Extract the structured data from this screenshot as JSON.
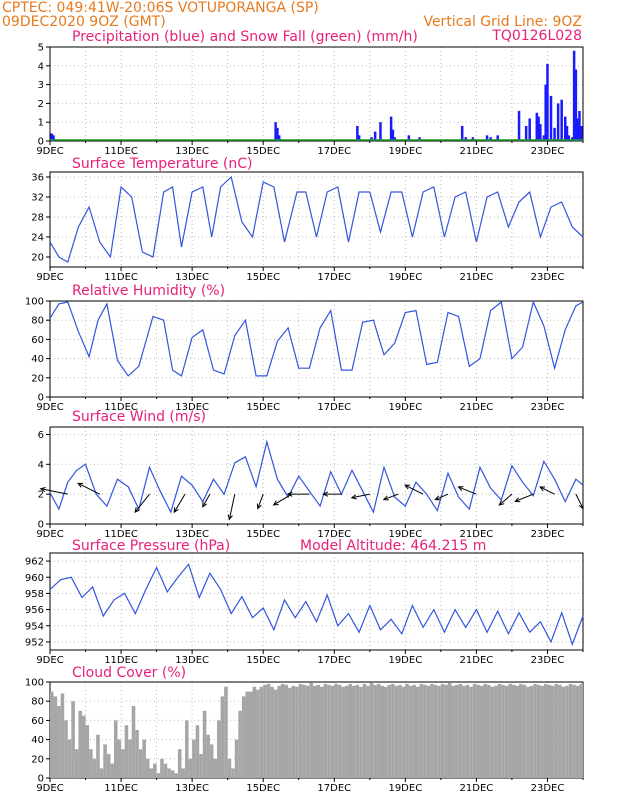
{
  "header": {
    "station": "CPTEC:   049:41W-20:06S   VOTUPORANGA (SP)",
    "run": "09DEC2020 9OZ (GMT)",
    "gridline": "Vertical Grid Line: 9OZ",
    "code": "TQ0126L028"
  },
  "chart_data": [
    {
      "type": "bar",
      "title": "Precipitation (blue) and Snow Fall (green) (mm/h)",
      "ylim": [
        0,
        5
      ],
      "yticks": [
        "0",
        "1",
        "2",
        "3",
        "4",
        "5"
      ],
      "xticks": [
        "9DEC",
        "11DEC",
        "13DEC",
        "15DEC",
        "17DEC",
        "19DEC",
        "21DEC",
        "23DEC"
      ],
      "series": [
        {
          "name": "Precipitation",
          "color": "#1a1aff",
          "x": [
            0.05,
            0.1,
            6.35,
            6.4,
            6.45,
            6.5,
            8.65,
            8.7,
            9.05,
            9.15,
            9.3,
            9.6,
            9.65,
            9.7,
            10.1,
            10.4,
            11.6,
            11.7,
            11.9,
            12.3,
            12.4,
            12.6,
            13.2,
            13.4,
            13.5,
            13.7,
            13.75,
            13.8,
            13.9,
            13.95,
            14.0,
            14.1,
            14.2,
            14.3,
            14.4,
            14.5,
            14.55,
            14.6,
            14.7,
            14.75,
            14.8,
            14.85,
            14.9,
            14.95
          ],
          "values": [
            0.4,
            0.3,
            1.0,
            0.7,
            0.3,
            0.1,
            0.8,
            0.3,
            0.2,
            0.5,
            1.0,
            1.3,
            0.6,
            0.2,
            0.3,
            0.2,
            0.8,
            0.2,
            0.2,
            0.3,
            0.2,
            0.3,
            1.6,
            0.8,
            1.2,
            1.5,
            1.3,
            0.9,
            0.3,
            3.0,
            4.1,
            2.4,
            0.7,
            2.0,
            2.2,
            1.3,
            0.8,
            0.3,
            0.2,
            4.8,
            3.8,
            1.2,
            1.6,
            0.8
          ]
        },
        {
          "name": "Snow Fall",
          "color": "#1f9e1f",
          "x": [],
          "values": []
        }
      ]
    },
    {
      "type": "line",
      "title": "Surface Temperature (nC)",
      "ylim": [
        18,
        37
      ],
      "yticks": [
        "20",
        "24",
        "28",
        "32",
        "36"
      ],
      "xticks": [
        "9DEC",
        "11DEC",
        "13DEC",
        "15DEC",
        "17DEC",
        "19DEC",
        "21DEC",
        "23DEC"
      ],
      "x": [
        0,
        0.25,
        0.5,
        0.8,
        1.1,
        1.4,
        1.7,
        2.0,
        2.3,
        2.6,
        2.9,
        3.2,
        3.45,
        3.7,
        4.0,
        4.3,
        4.55,
        4.8,
        5.1,
        5.4,
        5.7,
        6.0,
        6.3,
        6.6,
        6.95,
        7.2,
        7.5,
        7.8,
        8.1,
        8.4,
        8.7,
        9.0,
        9.3,
        9.6,
        9.9,
        10.2,
        10.5,
        10.8,
        11.1,
        11.4,
        11.7,
        12.0,
        12.3,
        12.6,
        12.9,
        13.2,
        13.5,
        13.8,
        14.1,
        14.4,
        14.7,
        15.0
      ],
      "values": [
        23,
        20,
        19,
        26,
        30,
        23,
        20,
        34,
        32,
        21,
        20,
        33,
        34,
        22,
        33,
        34,
        24,
        34,
        36,
        27,
        24,
        35,
        34,
        23,
        33,
        33,
        24,
        33,
        34,
        23,
        33,
        33,
        25,
        33,
        33,
        24,
        33,
        34,
        24,
        32,
        33,
        23,
        32,
        33,
        26,
        31,
        33,
        24,
        30,
        31,
        26,
        24
      ],
      "color": "#3355dd"
    },
    {
      "type": "line",
      "title": "Relative Humidity (%)",
      "ylim": [
        0,
        100
      ],
      "yticks": [
        "0",
        "20",
        "40",
        "60",
        "80",
        "100"
      ],
      "xticks": [
        "9DEC",
        "11DEC",
        "13DEC",
        "15DEC",
        "17DEC",
        "19DEC",
        "21DEC",
        "23DEC"
      ],
      "x": [
        0,
        0.25,
        0.5,
        0.8,
        1.1,
        1.35,
        1.6,
        1.9,
        2.2,
        2.5,
        2.9,
        3.2,
        3.45,
        3.7,
        4.0,
        4.3,
        4.6,
        4.9,
        5.2,
        5.5,
        5.8,
        6.1,
        6.4,
        6.7,
        7.0,
        7.3,
        7.6,
        7.9,
        8.2,
        8.5,
        8.8,
        9.1,
        9.4,
        9.7,
        10.0,
        10.3,
        10.6,
        10.9,
        11.2,
        11.5,
        11.8,
        12.1,
        12.4,
        12.7,
        13.0,
        13.3,
        13.6,
        13.9,
        14.2,
        14.5,
        14.8,
        15.0
      ],
      "values": [
        82,
        97,
        99,
        68,
        42,
        80,
        97,
        38,
        22,
        32,
        84,
        80,
        28,
        22,
        62,
        70,
        28,
        24,
        64,
        80,
        22,
        22,
        58,
        72,
        30,
        30,
        72,
        90,
        28,
        28,
        78,
        80,
        44,
        56,
        88,
        90,
        34,
        36,
        88,
        84,
        32,
        40,
        90,
        99,
        40,
        52,
        99,
        74,
        30,
        70,
        95,
        99
      ],
      "color": "#3355dd"
    },
    {
      "type": "line",
      "title": "Surface Wind (m/s)",
      "ylim": [
        0,
        6.5
      ],
      "yticks": [
        "0",
        "2",
        "4",
        "6"
      ],
      "xticks": [
        "9DEC",
        "11DEC",
        "13DEC",
        "15DEC",
        "17DEC",
        "19DEC",
        "21DEC",
        "23DEC"
      ],
      "x": [
        0,
        0.25,
        0.5,
        0.75,
        1.0,
        1.3,
        1.6,
        1.9,
        2.2,
        2.5,
        2.8,
        3.1,
        3.4,
        3.7,
        4.0,
        4.3,
        4.6,
        4.9,
        5.2,
        5.5,
        5.8,
        6.1,
        6.4,
        6.7,
        7.0,
        7.3,
        7.6,
        7.9,
        8.2,
        8.5,
        8.8,
        9.1,
        9.4,
        9.7,
        10.0,
        10.3,
        10.6,
        10.9,
        11.2,
        11.5,
        11.8,
        12.1,
        12.4,
        12.7,
        13.0,
        13.3,
        13.6,
        13.9,
        14.2,
        14.5,
        14.8,
        15.0
      ],
      "values": [
        2.1,
        1.0,
        2.8,
        3.6,
        4.0,
        2.0,
        1.2,
        3.0,
        2.5,
        1.0,
        3.8,
        2.2,
        0.8,
        3.2,
        2.6,
        1.5,
        3.0,
        2.0,
        4.1,
        4.5,
        2.5,
        5.5,
        3.0,
        1.8,
        3.2,
        2.2,
        1.2,
        3.5,
        2.0,
        3.6,
        2.2,
        0.8,
        3.8,
        1.8,
        1.2,
        2.8,
        2.0,
        0.9,
        3.4,
        1.8,
        1.0,
        3.8,
        2.4,
        1.6,
        3.9,
        2.8,
        1.9,
        4.2,
        3.0,
        1.5,
        3.0,
        2.6
      ],
      "color": "#3355dd",
      "vectors": {
        "x": [
          0.5,
          1.4,
          2.8,
          3.8,
          4.5,
          5.2,
          6.0,
          6.8,
          7.3,
          8.2,
          9.0,
          9.8,
          10.5,
          11.2,
          12.0,
          13.0,
          13.6,
          14.2,
          14.8
        ],
        "y": [
          2.0,
          2.0,
          2.0,
          2.0,
          2.0,
          2.0,
          2.0,
          2.0,
          2.0,
          2.0,
          2.0,
          2.0,
          2.0,
          2.0,
          2.0,
          2.0,
          2.0,
          2.0,
          2.0
        ],
        "u": [
          -1.5,
          -1.2,
          -0.8,
          -0.6,
          -0.4,
          -0.3,
          -0.3,
          -1.0,
          -1.2,
          -1.0,
          -1.0,
          -0.8,
          -1.0,
          -0.7,
          -1.0,
          -0.7,
          -1.0,
          -0.8,
          0.4
        ],
        "v": [
          0.3,
          0.6,
          -1.0,
          -1.0,
          -0.7,
          -1.4,
          -0.8,
          -0.6,
          0.0,
          0.0,
          -0.2,
          -0.3,
          0.5,
          -0.3,
          0.4,
          -0.6,
          -0.4,
          0.4,
          -0.8
        ]
      }
    },
    {
      "type": "line",
      "title": "Surface Pressure (hPa)",
      "annotation": "Model Altitude: 464.215  m",
      "ylim": [
        951,
        963
      ],
      "yticks": [
        "952",
        "954",
        "956",
        "958",
        "960",
        "962"
      ],
      "xticks": [
        "9DEC",
        "11DEC",
        "13DEC",
        "15DEC",
        "17DEC",
        "19DEC",
        "21DEC",
        "23DEC"
      ],
      "x": [
        0,
        0.3,
        0.6,
        0.9,
        1.2,
        1.5,
        1.8,
        2.1,
        2.4,
        2.7,
        3.0,
        3.3,
        3.6,
        3.9,
        4.2,
        4.5,
        4.8,
        5.1,
        5.4,
        5.7,
        6.0,
        6.3,
        6.6,
        6.9,
        7.2,
        7.5,
        7.8,
        8.1,
        8.4,
        8.7,
        9.0,
        9.3,
        9.6,
        9.9,
        10.2,
        10.5,
        10.8,
        11.1,
        11.4,
        11.7,
        12.0,
        12.3,
        12.6,
        12.9,
        13.2,
        13.5,
        13.8,
        14.1,
        14.4,
        14.7,
        15.0
      ],
      "values": [
        958.5,
        959.7,
        960.0,
        957.5,
        958.8,
        955.2,
        957.2,
        958.0,
        955.5,
        958.5,
        961.2,
        958.2,
        960.0,
        961.6,
        957.5,
        960.5,
        958.5,
        955.5,
        957.6,
        955.0,
        956.2,
        953.5,
        957.2,
        955.0,
        957.0,
        954.5,
        957.8,
        954.0,
        955.5,
        953.2,
        956.5,
        953.5,
        954.8,
        953.0,
        956.5,
        953.8,
        956.0,
        953.2,
        956.0,
        953.8,
        956.0,
        953.2,
        955.8,
        953.0,
        955.6,
        953.2,
        954.5,
        952.0,
        955.6,
        951.7,
        955.2
      ],
      "color": "#3355dd"
    },
    {
      "type": "bar",
      "title": "Cloud Cover (%)",
      "ylim": [
        0,
        100
      ],
      "yticks": [
        "0",
        "20",
        "40",
        "60",
        "80",
        "100"
      ],
      "xticks": [
        "9DEC",
        "11DEC",
        "13DEC",
        "15DEC",
        "17DEC",
        "19DEC",
        "21DEC",
        "23DEC"
      ],
      "color": "#a6a6a6",
      "x": [
        0.05,
        0.15,
        0.25,
        0.35,
        0.45,
        0.55,
        0.65,
        0.75,
        0.85,
        0.95,
        1.05,
        1.15,
        1.25,
        1.35,
        1.45,
        1.55,
        1.65,
        1.75,
        1.85,
        1.95,
        2.05,
        2.15,
        2.25,
        2.35,
        2.45,
        2.55,
        2.65,
        2.75,
        2.85,
        2.95,
        3.05,
        3.15,
        3.25,
        3.35,
        3.45,
        3.55,
        3.65,
        3.75,
        3.85,
        3.95,
        4.05,
        4.15,
        4.25,
        4.35,
        4.45,
        4.55,
        4.65,
        4.75,
        4.85,
        4.95,
        5.05,
        5.15,
        5.25,
        5.35,
        5.45,
        5.55,
        5.65,
        5.75,
        5.85,
        5.95,
        6.05,
        6.15,
        6.25,
        6.35,
        6.45,
        6.55,
        6.65,
        6.75,
        6.85,
        6.95,
        7.05,
        7.15,
        7.25,
        7.35,
        7.45,
        7.55,
        7.65,
        7.75,
        7.85,
        7.95,
        8.05,
        8.15,
        8.25,
        8.35,
        8.45,
        8.55,
        8.65,
        8.75,
        8.85,
        8.95,
        9.05,
        9.15,
        9.25,
        9.35,
        9.45,
        9.55,
        9.65,
        9.75,
        9.85,
        9.95,
        10.05,
        10.15,
        10.25,
        10.35,
        10.45,
        10.55,
        10.65,
        10.75,
        10.85,
        10.95,
        11.05,
        11.15,
        11.25,
        11.35,
        11.45,
        11.55,
        11.65,
        11.75,
        11.85,
        11.95,
        12.05,
        12.15,
        12.25,
        12.35,
        12.45,
        12.55,
        12.65,
        12.75,
        12.85,
        12.95,
        13.05,
        13.15,
        13.25,
        13.35,
        13.45,
        13.55,
        13.65,
        13.75,
        13.85,
        13.95,
        14.05,
        14.15,
        14.25,
        14.35,
        14.45,
        14.55,
        14.65,
        14.75,
        14.85,
        14.95
      ],
      "values": [
        90,
        85,
        75,
        88,
        60,
        40,
        80,
        30,
        70,
        65,
        55,
        30,
        20,
        45,
        10,
        35,
        25,
        15,
        60,
        40,
        30,
        55,
        40,
        75,
        50,
        30,
        40,
        20,
        10,
        15,
        5,
        20,
        15,
        10,
        8,
        5,
        30,
        10,
        60,
        20,
        40,
        55,
        25,
        70,
        45,
        35,
        20,
        60,
        85,
        95,
        20,
        10,
        40,
        70,
        85,
        90,
        90,
        95,
        92,
        95,
        97,
        98,
        95,
        92,
        96,
        98,
        97,
        94,
        96,
        95,
        98,
        97,
        96,
        99,
        96,
        97,
        95,
        98,
        97,
        96,
        98,
        97,
        95,
        96,
        98,
        96,
        97,
        95,
        98,
        96,
        99,
        97,
        98,
        96,
        95,
        97,
        98,
        96,
        97,
        95,
        98,
        96,
        97,
        95,
        98,
        97,
        96,
        98,
        97,
        96,
        98,
        97,
        99,
        96,
        97,
        98,
        96,
        97,
        95,
        98,
        97,
        96,
        98,
        97,
        95,
        96,
        98,
        97,
        96,
        98,
        97,
        96,
        98,
        97,
        95,
        96,
        98,
        97,
        96,
        98,
        97,
        96,
        98,
        97,
        95,
        96,
        98,
        97,
        96,
        98
      ]
    }
  ]
}
